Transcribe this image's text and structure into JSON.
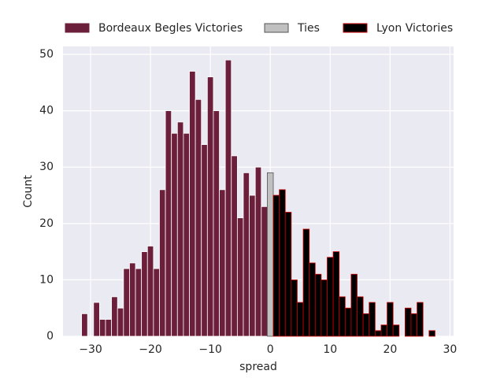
{
  "chart_data": {
    "type": "histogram",
    "x_label": "spread",
    "y_label": "Count",
    "xlim": [
      -34.6,
      30.6
    ],
    "ylim": [
      0,
      51.4
    ],
    "xticks": [
      {
        "value": -30,
        "label": "−30"
      },
      {
        "value": -20,
        "label": "−20"
      },
      {
        "value": -10,
        "label": "−10"
      },
      0,
      10,
      20,
      30
    ],
    "yticks": [
      0,
      10,
      20,
      30,
      40,
      50
    ],
    "grid": true,
    "legend": "upper center",
    "series": [
      {
        "name": "Bordeaux Begles Victories",
        "color": "#6b1f3a",
        "edgecolor": "#ffffff",
        "bins": [
          -31.5,
          -30.5,
          -29.5,
          -28.5,
          -27.5,
          -26.5,
          -25.5,
          -24.5,
          -23.5,
          -22.5,
          -21.5,
          -20.5,
          -19.5,
          -18.5,
          -17.5,
          -16.5,
          -15.5,
          -14.5,
          -13.5,
          -12.5,
          -11.5,
          -10.5,
          -9.5,
          -8.5,
          -7.5,
          -6.5,
          -5.5,
          -4.5,
          -3.5,
          -2.5,
          -1.5,
          -0.5
        ],
        "values": [
          4,
          0,
          6,
          3,
          3,
          7,
          5,
          12,
          13,
          12,
          15,
          16,
          12,
          26,
          40,
          36,
          38,
          36,
          47,
          42,
          34,
          46,
          40,
          26,
          49,
          32,
          21,
          29,
          25,
          30,
          23
        ]
      },
      {
        "name": "Ties",
        "color": "#c0c0c0",
        "edgecolor": "#555555",
        "bins": [
          -0.5,
          0.5
        ],
        "values": [
          29
        ]
      },
      {
        "name": "Lyon Victories",
        "color": "#000000",
        "edgecolor": "#cc0000",
        "bins": [
          0.5,
          1.5,
          2.5,
          3.5,
          4.5,
          5.5,
          6.5,
          7.5,
          8.5,
          9.5,
          10.5,
          11.5,
          12.5,
          13.5,
          14.5,
          15.5,
          16.5,
          17.5,
          18.5,
          19.5,
          20.5,
          21.5,
          22.5,
          23.5,
          24.5,
          25.5,
          26.5,
          27.5
        ],
        "values": [
          25,
          26,
          22,
          10,
          6,
          19,
          13,
          11,
          10,
          14,
          15,
          7,
          5,
          11,
          7,
          4,
          6,
          1,
          2,
          6,
          2,
          0,
          5,
          4,
          6,
          0,
          1
        ]
      }
    ]
  }
}
